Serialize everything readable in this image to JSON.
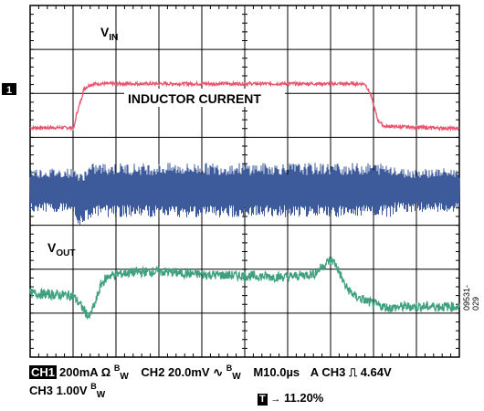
{
  "chart_data": {
    "type": "line",
    "grid": true,
    "x_divisions": 10,
    "y_divisions": 8,
    "xlabel": "",
    "ylabel": "",
    "x_scale_per_div": "10.0µs",
    "series": [
      {
        "name": "VIN",
        "channel": "CH1",
        "color": "#e8556e",
        "x_div": [
          0,
          4.1,
          4.3,
          4.8,
          5.0,
          5.6,
          6.2,
          31.2,
          31.7,
          32.4,
          33.0,
          40
        ],
        "y_div": [
          1.22,
          1.22,
          1.5,
          1.9,
          2.1,
          2.2,
          2.22,
          2.22,
          2.0,
          1.4,
          1.25,
          1.2
        ]
      },
      {
        "name": "INDUCTOR CURRENT",
        "channel": "CH2",
        "color": "#3d5a9a",
        "x_div": [
          0,
          3.8,
          4.2,
          4.6,
          5.4,
          6.0,
          40
        ],
        "y_div": [
          -0.2,
          -0.2,
          -0.2,
          -0.45,
          -0.25,
          -0.2,
          -0.2
        ]
      },
      {
        "name": "VOUT",
        "channel": "CH3",
        "color": "#3fa07f",
        "x_div": [
          0,
          4.0,
          4.8,
          5.5,
          6.1,
          6.6,
          7.3,
          9.0,
          12,
          16,
          20,
          24,
          26.5,
          27.2,
          27.8,
          28.2,
          28.6,
          29.4,
          30.3,
          31.3,
          32.3,
          33.5,
          35,
          37,
          40
        ],
        "y_div": [
          -2.55,
          -2.6,
          -2.85,
          -3.1,
          -2.75,
          -2.35,
          -2.15,
          -2.08,
          -2.05,
          -2.12,
          -2.15,
          -2.18,
          -2.1,
          -1.95,
          -1.82,
          -1.8,
          -1.95,
          -2.4,
          -2.62,
          -2.72,
          -2.82,
          -2.88,
          -2.85,
          -2.85,
          -2.85
        ]
      }
    ]
  },
  "labels": {
    "vin": "V",
    "vin_sub": "IN",
    "inductor": "INDUCTOR CURRENT",
    "vout": "V",
    "vout_sub": "OUT",
    "marker": "1"
  },
  "status": {
    "ch1_tag": "CH1",
    "ch1_value": "200mA Ω",
    "bw1_b": "B",
    "bw1_w": "W",
    "ch2_value": "CH2 20.0mV",
    "ch2_symbol": "∿",
    "bw2_b": "B",
    "bw2_w": "W",
    "timebase": "M10.0µs",
    "trigger": "A CH3",
    "trigger_symbol": "⎍",
    "trigger_level": "4.64V",
    "ch3_value": "CH3 1.00V",
    "bw3_b": "B",
    "bw3_w": "W",
    "t_tag": "T",
    "t_arrow": "→",
    "t_position": "11.20%"
  },
  "figure_id": "09531-029"
}
